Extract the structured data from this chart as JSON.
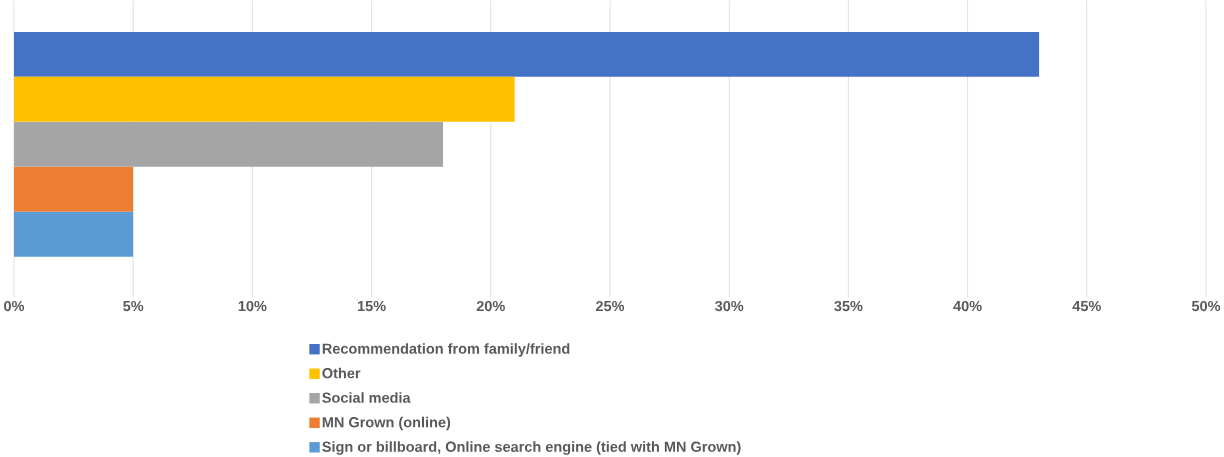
{
  "chart_data": {
    "type": "bar",
    "orientation": "horizontal",
    "categories": [
      null
    ],
    "series": [
      {
        "name": "Recommendation from family/friend",
        "color": "#4472c4",
        "values": [
          43
        ]
      },
      {
        "name": "Other",
        "color": "#ffc000",
        "values": [
          21
        ]
      },
      {
        "name": "Social media",
        "color": "#a5a5a5",
        "values": [
          18
        ]
      },
      {
        "name": "MN Grown (online)",
        "color": "#ed7d31",
        "values": [
          5
        ]
      },
      {
        "name": "Sign or billboard, Online search engine (tied with MN Grown)",
        "color": "#5b9bd5",
        "values": [
          5
        ]
      }
    ],
    "xlim": [
      0,
      50
    ],
    "xticks": [
      {
        "value": 0,
        "label": "0%"
      },
      {
        "value": 5,
        "label": "5%"
      },
      {
        "value": 10,
        "label": "10%"
      },
      {
        "value": 15,
        "label": "15%"
      },
      {
        "value": 20,
        "label": "20%"
      },
      {
        "value": 25,
        "label": "25%"
      },
      {
        "value": 30,
        "label": "30%"
      },
      {
        "value": 35,
        "label": "35%"
      },
      {
        "value": 40,
        "label": "40%"
      },
      {
        "value": 45,
        "label": "45%"
      },
      {
        "value": 50,
        "label": "50%"
      }
    ],
    "grid": "x",
    "legend": "bottom"
  }
}
